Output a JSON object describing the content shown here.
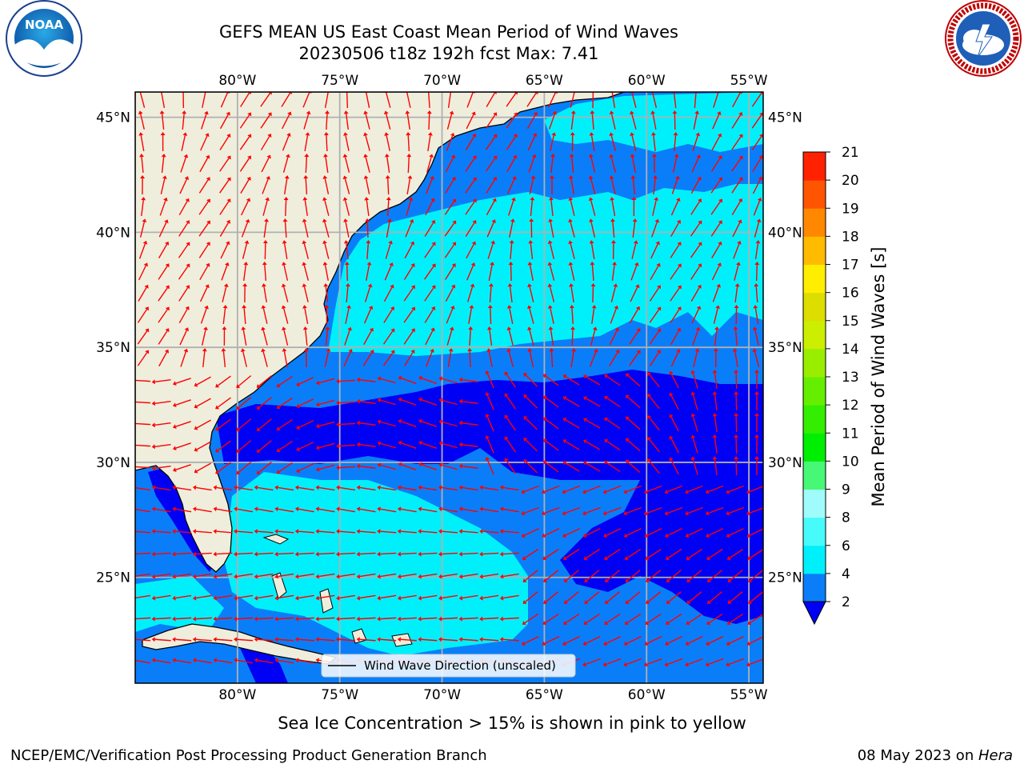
{
  "title": {
    "line1": "GEFS MEAN US East Coast Mean Period of Wind Waves",
    "line2": "20230506 t18z 192h fcst   Max: 7.41"
  },
  "logos": {
    "left": {
      "text": "NOAA",
      "icon": "noaa-logo"
    },
    "right": {
      "icon": "national-weather-service-logo"
    }
  },
  "map": {
    "lon_labels": [
      "80°W",
      "75°W",
      "70°W",
      "65°W",
      "60°W",
      "55°W"
    ],
    "lat_labels": [
      "45°N",
      "40°N",
      "35°N",
      "30°N",
      "25°N"
    ],
    "lon_values": [
      -80,
      -75,
      -70,
      -65,
      -60,
      -55
    ],
    "lat_values": [
      45,
      40,
      35,
      30,
      25
    ],
    "extent": {
      "lon": [
        -85,
        -54.3
      ],
      "lat": [
        20.4,
        46.1
      ]
    },
    "colors": {
      "land": "#efeedd",
      "bin_2_4": "#0a7ef9",
      "bin_4_6": "#00f0fb",
      "below_2": "#0000f5",
      "arrow": "#ff0000",
      "grid": "#b0b0b0"
    },
    "legend_label": "Wind Wave Direction (unscaled)"
  },
  "colorbar": {
    "label": "Mean Period of Wind Waves [s]",
    "ticks": [
      "2",
      "4",
      "6",
      "8",
      "9",
      "10",
      "11",
      "12",
      "13",
      "14",
      "15",
      "16",
      "17",
      "18",
      "19",
      "20",
      "21"
    ],
    "colors": [
      "#0a7ef9",
      "#00f0fb",
      "#48fbfb",
      "#a0fcfb",
      "#47f776",
      "#00ee00",
      "#33ee00",
      "#66ee00",
      "#99ee00",
      "#ccee00",
      "#dddd00",
      "#ffee00",
      "#ffbb00",
      "#ff8800",
      "#ff5500",
      "#ff2200"
    ],
    "under_color": "#0000f5"
  },
  "notes": {
    "sea_ice": "Sea Ice Concentration > 15% is shown in pink to yellow"
  },
  "footer": {
    "left": "NCEP/EMC/Verification Post Processing Product Generation Branch",
    "right_prefix": "08 May 2023 on ",
    "right_host": "Hera"
  }
}
